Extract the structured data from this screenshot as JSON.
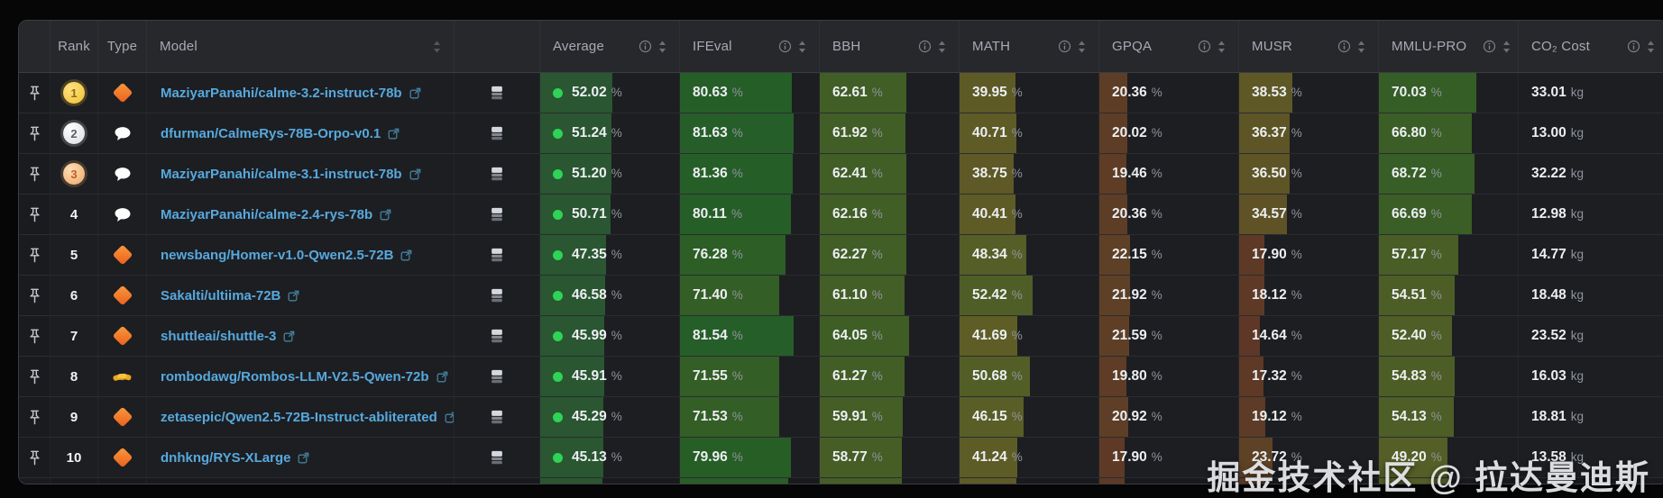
{
  "header": {
    "columns": [
      {
        "key": "pin",
        "label": "",
        "align": "center",
        "info": false,
        "sort": false
      },
      {
        "key": "rank",
        "label": "Rank",
        "align": "center",
        "info": false,
        "sort": false
      },
      {
        "key": "type",
        "label": "Type",
        "align": "center",
        "info": false,
        "sort": false
      },
      {
        "key": "model",
        "label": "Model",
        "align": "left",
        "info": false,
        "sort": true
      },
      {
        "key": "details",
        "label": "",
        "align": "left",
        "info": false,
        "sort": false
      },
      {
        "key": "average",
        "label": "Average",
        "align": "left",
        "info": true,
        "sort": true
      },
      {
        "key": "ifeval",
        "label": "IFEval",
        "align": "left",
        "info": true,
        "sort": true
      },
      {
        "key": "bbh",
        "label": "BBH",
        "align": "left",
        "info": true,
        "sort": true
      },
      {
        "key": "math",
        "label": "MATH",
        "align": "left",
        "info": true,
        "sort": true
      },
      {
        "key": "gpqa",
        "label": "GPQA",
        "align": "left",
        "info": true,
        "sort": true
      },
      {
        "key": "musr",
        "label": "MUSR",
        "align": "left",
        "info": true,
        "sort": true
      },
      {
        "key": "mmlu_pro",
        "label": "MMLU-PRO",
        "align": "left",
        "info": true,
        "sort": true,
        "tight": true
      },
      {
        "key": "co2",
        "label": "CO₂ Cost",
        "align": "left",
        "info": true,
        "sort": true
      }
    ]
  },
  "units": {
    "percent": "%",
    "kg": "kg"
  },
  "rows": [
    {
      "rank": "1",
      "medal": "gold",
      "type": "diamond",
      "model": "MaziyarPanahi/calme-3.2-instruct-78b",
      "average": "52.02",
      "ifeval": "80.63",
      "bbh": "62.61",
      "math": "39.95",
      "gpqa": "20.36",
      "musr": "38.53",
      "mmlu_pro": "70.03",
      "co2": "33.01"
    },
    {
      "rank": "2",
      "medal": "silver",
      "type": "chat",
      "model": "dfurman/CalmeRys-78B-Orpo-v0.1",
      "average": "51.24",
      "ifeval": "81.63",
      "bbh": "61.92",
      "math": "40.71",
      "gpqa": "20.02",
      "musr": "36.37",
      "mmlu_pro": "66.80",
      "co2": "13.00"
    },
    {
      "rank": "3",
      "medal": "bronze",
      "type": "chat",
      "model": "MaziyarPanahi/calme-3.1-instruct-78b",
      "average": "51.20",
      "ifeval": "81.36",
      "bbh": "62.41",
      "math": "38.75",
      "gpqa": "19.46",
      "musr": "36.50",
      "mmlu_pro": "68.72",
      "co2": "32.22"
    },
    {
      "rank": "4",
      "medal": "none",
      "type": "chat",
      "model": "MaziyarPanahi/calme-2.4-rys-78b",
      "average": "50.71",
      "ifeval": "80.11",
      "bbh": "62.16",
      "math": "40.41",
      "gpqa": "20.36",
      "musr": "34.57",
      "mmlu_pro": "66.69",
      "co2": "12.98"
    },
    {
      "rank": "5",
      "medal": "none",
      "type": "diamond",
      "model": "newsbang/Homer-v1.0-Qwen2.5-72B",
      "average": "47.35",
      "ifeval": "76.28",
      "bbh": "62.27",
      "math": "48.34",
      "gpqa": "22.15",
      "musr": "17.90",
      "mmlu_pro": "57.17",
      "co2": "14.77"
    },
    {
      "rank": "6",
      "medal": "none",
      "type": "diamond",
      "model": "Sakalti/ultiima-72B",
      "average": "46.58",
      "ifeval": "71.40",
      "bbh": "61.10",
      "math": "52.42",
      "gpqa": "21.92",
      "musr": "18.12",
      "mmlu_pro": "54.51",
      "co2": "18.48"
    },
    {
      "rank": "7",
      "medal": "none",
      "type": "diamond",
      "model": "shuttleai/shuttle-3",
      "average": "45.99",
      "ifeval": "81.54",
      "bbh": "64.05",
      "math": "41.69",
      "gpqa": "21.59",
      "musr": "14.64",
      "mmlu_pro": "52.40",
      "co2": "23.52"
    },
    {
      "rank": "8",
      "medal": "none",
      "type": "handshake",
      "model": "rombodawg/Rombos-LLM-V2.5-Qwen-72b",
      "average": "45.91",
      "ifeval": "71.55",
      "bbh": "61.27",
      "math": "50.68",
      "gpqa": "19.80",
      "musr": "17.32",
      "mmlu_pro": "54.83",
      "co2": "16.03"
    },
    {
      "rank": "9",
      "medal": "none",
      "type": "diamond",
      "model": "zetasepic/Qwen2.5-72B-Instruct-abliterated",
      "average": "45.29",
      "ifeval": "71.53",
      "bbh": "59.91",
      "math": "46.15",
      "gpqa": "20.92",
      "musr": "19.12",
      "mmlu_pro": "54.13",
      "co2": "18.81"
    },
    {
      "rank": "10",
      "medal": "none",
      "type": "diamond",
      "model": "dnhkng/RYS-XLarge",
      "average": "45.13",
      "ifeval": "79.96",
      "bbh": "58.77",
      "math": "41.24",
      "gpqa": "17.90",
      "musr": "23.72",
      "mmlu_pro": "49.20",
      "co2": "13.58"
    }
  ],
  "partial_row_bars": {
    "average": 45,
    "ifeval": 78,
    "bbh": 59,
    "math": 41,
    "gpqa": 18,
    "musr": 21,
    "mmlu_pro": 50
  },
  "watermark": "掘金技术社区 @ 拉达曼迪斯",
  "colors": {
    "link": "#56a9de",
    "green_dot": "#2ed357",
    "diamond": "#ec5f1c",
    "chat_bubble": "#fdfdfd",
    "handshake": "#f6c445",
    "gold": "#f0c232",
    "silver": "#d8dbe0",
    "bronze": "#eca869",
    "avg_bar": "#2a5631"
  },
  "icons": {
    "pin": "pushpin-icon",
    "details": "database-icon",
    "info": "info-icon",
    "sort": "sort-arrows-icon",
    "external": "external-link-icon"
  }
}
